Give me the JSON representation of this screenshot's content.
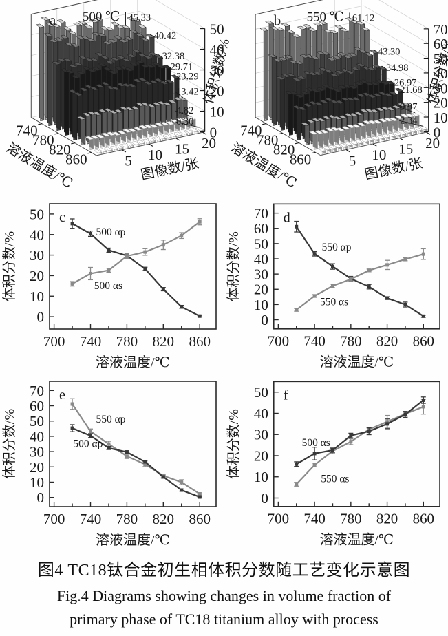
{
  "caption": {
    "zh": "图4  TC18钛合金初生相体积分数随工艺变化示意图",
    "en_line1": "Fig.4  Diagrams showing changes in volume fraction of",
    "en_line2": "primary phase of TC18 titanium alloy with process"
  },
  "colors": {
    "dark_series": "#383838",
    "gray_series": "#8a8a8a",
    "axis": "#1a1a1a",
    "grid": "#d2d2d2",
    "bar_row_shades": [
      "#adadad",
      "#666666",
      "#474747",
      "#272727",
      "#3f3f3f",
      "#8f8f8f",
      "#cbcbcb",
      "#f6f6f6"
    ]
  },
  "chart_data": [
    {
      "id": "a",
      "type": "bar3d",
      "panel_label": "a",
      "title": "500 ℃",
      "xlabel": "图像数/张",
      "depth_label": "溶液温度/℃",
      "zlabel": "体积分数/%",
      "x_ticks": [
        5,
        10,
        15,
        20
      ],
      "depth_ticks": [
        740,
        780,
        820,
        860
      ],
      "temperatures": [
        720,
        740,
        760,
        780,
        800,
        820,
        840,
        860
      ],
      "z_ticks": [
        0,
        10,
        20,
        30,
        40,
        50
      ],
      "zlim": [
        0,
        50
      ],
      "images_per_row": 20,
      "row_means": [
        45.33,
        40.42,
        32.38,
        29.71,
        23.29,
        13.42,
        4.82,
        0.3
      ],
      "row_labels": [
        "45.33",
        "40.42",
        "32.38",
        "29.71",
        "23.29",
        "13.42",
        "4.82",
        "0.30"
      ]
    },
    {
      "id": "b",
      "type": "bar3d",
      "panel_label": "b",
      "title": "550 ℃",
      "xlabel": "图像数/张",
      "depth_label": "溶液温度/℃",
      "zlabel": "体积分数/%",
      "x_ticks": [
        5,
        10,
        15,
        20
      ],
      "depth_ticks": [
        740,
        780,
        820,
        860
      ],
      "temperatures": [
        720,
        740,
        760,
        780,
        800,
        820,
        840,
        860
      ],
      "z_ticks": [
        0,
        10,
        20,
        30,
        40,
        50,
        60,
        70
      ],
      "zlim": [
        0,
        70
      ],
      "images_per_row": 20,
      "row_means": [
        61.12,
        43.3,
        34.98,
        26.97,
        21.68,
        14.2,
        9.97,
        2.34
      ],
      "row_labels": [
        "61.12",
        "43.30",
        "34.98",
        "26.97",
        "21.68",
        "",
        "9.97",
        "2.34"
      ],
      "spike_at": 16
    },
    {
      "id": "c",
      "type": "line",
      "panel_label": "c",
      "xlabel": "溶液温度/℃",
      "ylabel": "体积分数/%",
      "x": [
        720,
        740,
        760,
        780,
        800,
        820,
        840,
        860
      ],
      "x_ticks": [
        700,
        740,
        780,
        820,
        860
      ],
      "xlim": [
        695,
        878
      ],
      "y_ticks": [
        0,
        10,
        20,
        30,
        40,
        50
      ],
      "ylim": [
        -6,
        55
      ],
      "series": [
        {
          "name": "500 αp",
          "color_key": "dark_series",
          "values": [
            45.33,
            40.42,
            32.38,
            29.71,
            23.29,
            13.42,
            4.82,
            0.3
          ],
          "errors": [
            2.3,
            1.3,
            1.0,
            0.9,
            0.8,
            0.8,
            0.7,
            0.4
          ],
          "label_at": [
            746,
            39.5
          ]
        },
        {
          "name": "500 αs",
          "color_key": "gray_series",
          "values": [
            16.0,
            21.0,
            22.6,
            29.5,
            31.5,
            35.0,
            39.5,
            46.2
          ],
          "errors": [
            1.1,
            3.0,
            1.0,
            1.1,
            1.6,
            2.3,
            1.4,
            1.5
          ],
          "label_at": [
            744,
            13.5
          ]
        }
      ]
    },
    {
      "id": "d",
      "type": "line",
      "panel_label": "d",
      "xlabel": "溶液温度/℃",
      "ylabel": "体积分数/%",
      "x": [
        720,
        740,
        760,
        780,
        800,
        820,
        840,
        860
      ],
      "x_ticks": [
        700,
        740,
        780,
        820,
        860
      ],
      "xlim": [
        695,
        878
      ],
      "y_ticks": [
        0,
        10,
        20,
        30,
        40,
        50,
        60,
        70
      ],
      "ylim": [
        -6,
        76
      ],
      "series": [
        {
          "name": "550 αp",
          "color_key": "dark_series",
          "values": [
            61.12,
            43.3,
            34.98,
            26.97,
            21.68,
            14.2,
            9.97,
            2.34
          ],
          "errors": [
            3.5,
            1.5,
            1.8,
            1.5,
            1.5,
            0.9,
            1.6,
            0.7
          ],
          "label_at": [
            748,
            45.5
          ]
        },
        {
          "name": "550 αs",
          "color_key": "gray_series",
          "values": [
            6.5,
            15.6,
            22.2,
            26.6,
            32.4,
            36.0,
            39.7,
            43.1
          ],
          "errors": [
            0.9,
            0.9,
            1.2,
            1.4,
            0.9,
            3.0,
            1.0,
            3.5
          ],
          "label_at": [
            746,
            9.5
          ]
        }
      ]
    },
    {
      "id": "e",
      "type": "line",
      "panel_label": "e",
      "xlabel": "溶液温度/℃",
      "ylabel": "体积分数/%",
      "x": [
        720,
        740,
        760,
        780,
        800,
        820,
        840,
        860
      ],
      "x_ticks": [
        700,
        740,
        780,
        820,
        860
      ],
      "xlim": [
        695,
        878
      ],
      "y_ticks": [
        0,
        10,
        20,
        30,
        40,
        50,
        60,
        70
      ],
      "ylim": [
        -6,
        76
      ],
      "series": [
        {
          "name": "550 αp",
          "color_key": "gray_series",
          "values": [
            61.12,
            43.3,
            34.98,
            26.97,
            21.68,
            14.2,
            9.97,
            2.34
          ],
          "errors": [
            3.5,
            1.5,
            1.8,
            1.5,
            1.5,
            0.9,
            1.6,
            0.7
          ],
          "label_at": [
            746,
            49.0
          ]
        },
        {
          "name": "500 αp",
          "color_key": "dark_series",
          "values": [
            45.33,
            40.42,
            32.38,
            29.71,
            23.29,
            13.42,
            4.82,
            0.3
          ],
          "errors": [
            2.3,
            1.3,
            1.0,
            0.9,
            0.8,
            0.8,
            0.7,
            0.4
          ],
          "label_at": [
            721,
            33.0
          ]
        }
      ]
    },
    {
      "id": "f",
      "type": "line",
      "panel_label": "f",
      "xlabel": "溶液温度/℃",
      "ylabel": "体积分数/%",
      "x": [
        720,
        740,
        760,
        780,
        800,
        820,
        840,
        860
      ],
      "x_ticks": [
        700,
        740,
        780,
        820,
        860
      ],
      "xlim": [
        695,
        878
      ],
      "y_ticks": [
        0,
        10,
        20,
        30,
        40,
        50
      ],
      "ylim": [
        -4,
        55
      ],
      "series": [
        {
          "name": "550 αs",
          "color_key": "gray_series",
          "values": [
            6.5,
            15.6,
            22.2,
            26.6,
            32.4,
            36.0,
            39.7,
            43.1
          ],
          "errors": [
            0.9,
            0.9,
            1.2,
            1.4,
            0.9,
            3.0,
            1.0,
            3.5
          ],
          "label_at": [
            747,
            7.5
          ]
        },
        {
          "name": "500 αs",
          "color_key": "dark_series",
          "values": [
            16.0,
            21.0,
            22.6,
            29.5,
            31.5,
            35.0,
            39.5,
            46.2
          ],
          "errors": [
            1.1,
            3.0,
            1.0,
            1.1,
            1.6,
            2.3,
            1.4,
            1.5
          ],
          "label_at": [
            726,
            24.5
          ]
        }
      ]
    }
  ]
}
